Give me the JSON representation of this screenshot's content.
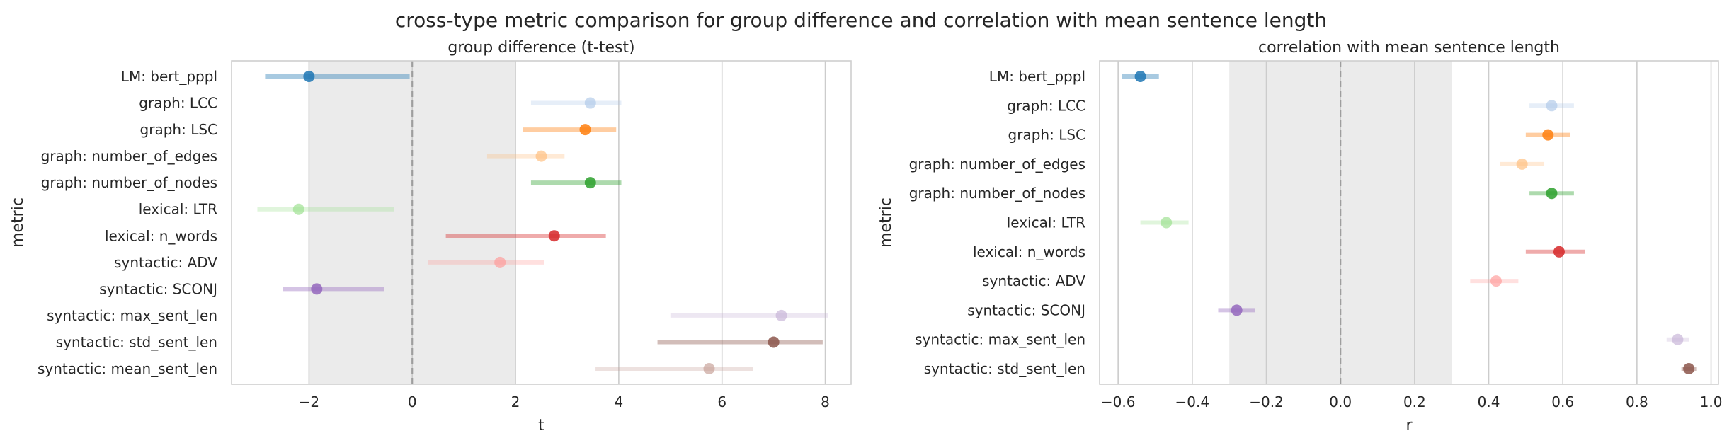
{
  "suptitle": "cross-type metric comparison for group difference and correlation with mean sentence length",
  "chart_data": [
    {
      "type": "scatter",
      "subtype": "point-range",
      "title": "group difference (t-test)",
      "xlabel": "t",
      "ylabel": "metric",
      "xlim": [
        -3.5,
        8.5
      ],
      "xticks": [
        -2,
        0,
        2,
        4,
        6,
        8
      ],
      "xtick_labels": [
        "−2",
        "0",
        "2",
        "4",
        "6",
        "8"
      ],
      "shaded_band": [
        -2,
        2
      ],
      "zero_line": 0,
      "grid": "x",
      "categories": [
        "LM: bert_pppl",
        "graph: LCC",
        "graph: LSC",
        "graph: number_of_edges",
        "graph: number_of_nodes",
        "lexical: LTR",
        "lexical: n_words",
        "syntactic: ADV",
        "syntactic: SCONJ",
        "syntactic: max_sent_len",
        "syntactic: std_sent_len",
        "syntactic: mean_sent_len"
      ],
      "values": [
        -2.0,
        3.45,
        3.35,
        2.5,
        3.45,
        -2.2,
        2.75,
        1.7,
        -1.85,
        7.15,
        7.0,
        5.75
      ],
      "ci_low": [
        -2.85,
        2.3,
        2.15,
        1.45,
        2.3,
        -3.0,
        0.65,
        0.3,
        -2.5,
        5.0,
        4.75,
        3.55
      ],
      "ci_high": [
        -0.05,
        4.05,
        3.95,
        2.95,
        4.05,
        -0.35,
        3.75,
        2.55,
        -0.55,
        8.05,
        7.95,
        6.6
      ],
      "colors": [
        "#1f77b4",
        "#aec7e8",
        "#ff7f0e",
        "#ffbb78",
        "#2ca02c",
        "#98df8a",
        "#d62728",
        "#ff9896",
        "#9467bd",
        "#c5b0d5",
        "#8c564b",
        "#c49c94"
      ],
      "alphas": [
        0.85,
        0.65,
        0.85,
        0.65,
        0.85,
        0.65,
        0.85,
        0.65,
        0.85,
        0.65,
        0.85,
        0.65
      ]
    },
    {
      "type": "scatter",
      "subtype": "point-range",
      "title": "correlation with mean sentence length",
      "xlabel": "r",
      "ylabel": "metric",
      "xlim": [
        -0.65,
        1.02
      ],
      "xticks": [
        -0.6,
        -0.4,
        -0.2,
        0.0,
        0.2,
        0.4,
        0.6,
        0.8,
        1.0
      ],
      "xtick_labels": [
        "−0.6",
        "−0.4",
        "−0.2",
        "0.0",
        "0.2",
        "0.4",
        "0.6",
        "0.8",
        "1.0"
      ],
      "shaded_band": [
        -0.3,
        0.3
      ],
      "zero_line": 0,
      "grid": "x",
      "categories": [
        "LM: bert_pppl",
        "graph: LCC",
        "graph: LSC",
        "graph: number_of_edges",
        "graph: number_of_nodes",
        "lexical: LTR",
        "lexical: n_words",
        "syntactic: ADV",
        "syntactic: SCONJ",
        "syntactic: max_sent_len",
        "syntactic: std_sent_len"
      ],
      "values": [
        -0.54,
        0.57,
        0.56,
        0.49,
        0.57,
        -0.47,
        0.59,
        0.42,
        -0.28,
        0.91,
        0.94
      ],
      "ci_low": [
        -0.59,
        0.51,
        0.5,
        0.43,
        0.51,
        -0.54,
        0.5,
        0.35,
        -0.33,
        0.88,
        0.92
      ],
      "ci_high": [
        -0.49,
        0.63,
        0.62,
        0.55,
        0.63,
        -0.41,
        0.66,
        0.48,
        -0.23,
        0.94,
        0.96
      ],
      "colors": [
        "#1f77b4",
        "#aec7e8",
        "#ff7f0e",
        "#ffbb78",
        "#2ca02c",
        "#98df8a",
        "#d62728",
        "#ff9896",
        "#9467bd",
        "#c5b0d5",
        "#8c564b"
      ],
      "alphas": [
        0.85,
        0.65,
        0.85,
        0.65,
        0.85,
        0.65,
        0.85,
        0.65,
        0.85,
        0.65,
        0.85
      ]
    }
  ]
}
